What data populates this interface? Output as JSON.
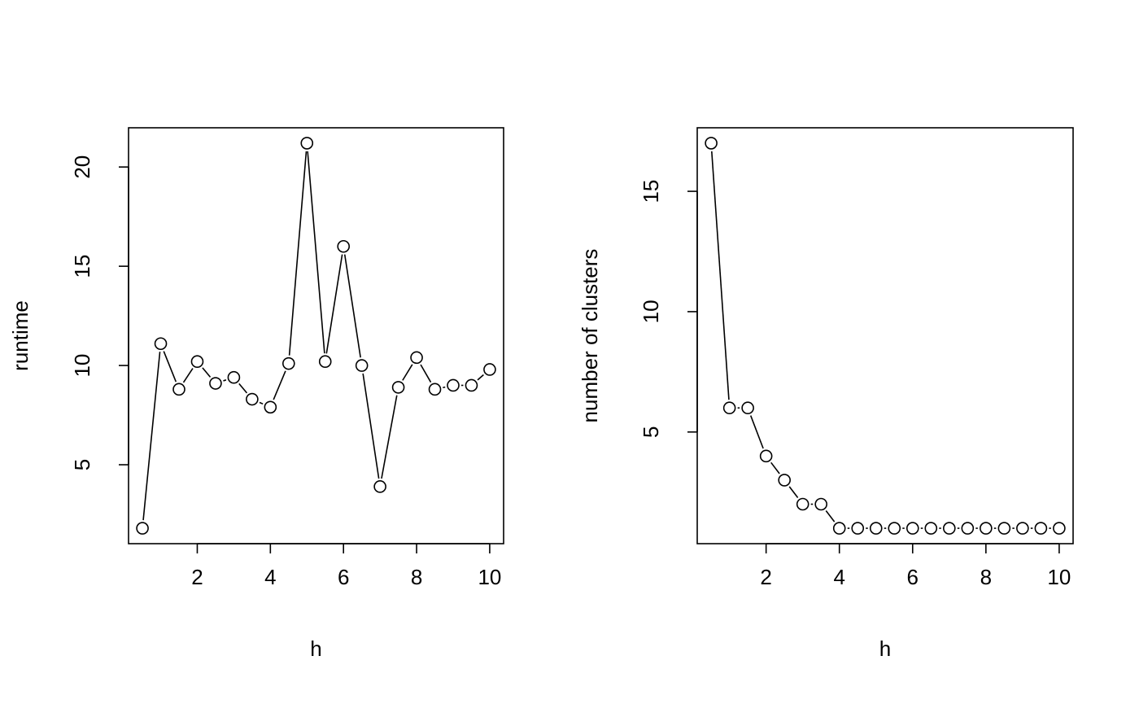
{
  "chart_data": [
    {
      "type": "line",
      "markers": "open-circle",
      "xlabel": "h",
      "ylabel": "runtime",
      "xlim": [
        0.5,
        10
      ],
      "ylim": [
        1.8,
        21.2
      ],
      "xticks": [
        2,
        4,
        6,
        8,
        10
      ],
      "yticks": [
        5,
        10,
        15,
        20
      ],
      "grid": false,
      "x": [
        0.5,
        1,
        1.5,
        2,
        2.5,
        3,
        3.5,
        4,
        4.5,
        5,
        5.5,
        6,
        6.5,
        7,
        7.5,
        8,
        8.5,
        9,
        9.5,
        10
      ],
      "y": [
        1.8,
        11.1,
        8.8,
        10.2,
        9.1,
        9.4,
        8.3,
        7.9,
        10.1,
        21.2,
        10.2,
        16.0,
        10.0,
        3.9,
        8.9,
        10.4,
        8.8,
        9.0,
        9.0,
        9.8
      ]
    },
    {
      "type": "line",
      "markers": "open-circle",
      "xlabel": "h",
      "ylabel": "number of clusters",
      "xlim": [
        0.5,
        10
      ],
      "ylim": [
        1,
        17
      ],
      "xticks": [
        2,
        4,
        6,
        8,
        10
      ],
      "yticks": [
        5,
        10,
        15
      ],
      "grid": false,
      "x": [
        0.5,
        1,
        1.5,
        2,
        2.5,
        3,
        3.5,
        4,
        4.5,
        5,
        5.5,
        6,
        6.5,
        7,
        7.5,
        8,
        8.5,
        9,
        9.5,
        10
      ],
      "y": [
        17,
        6,
        6,
        4,
        3,
        2,
        2,
        1,
        1,
        1,
        1,
        1,
        1,
        1,
        1,
        1,
        1,
        1,
        1,
        1
      ]
    }
  ]
}
